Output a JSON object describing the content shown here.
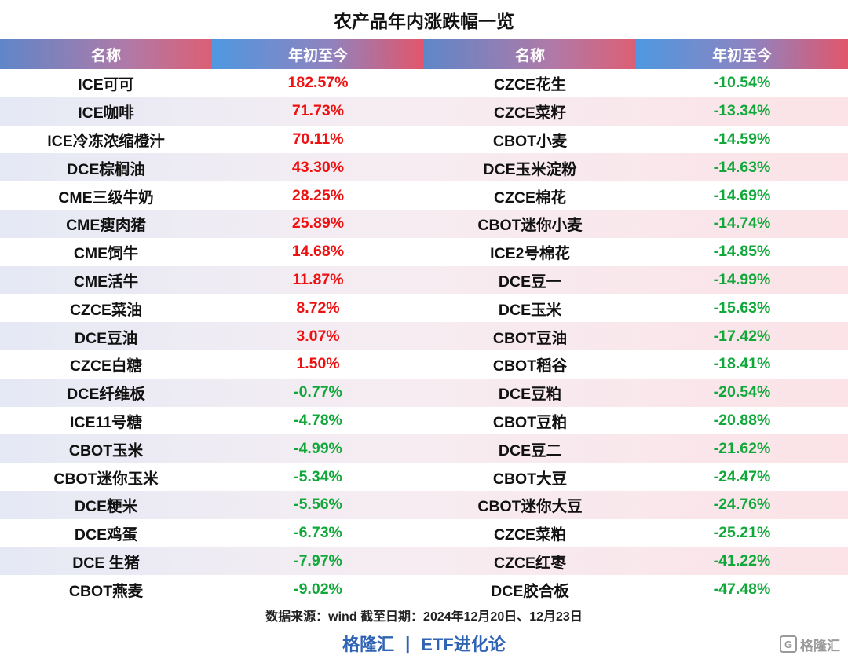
{
  "title": "农产品年内涨跌幅一览",
  "header": {
    "name_label": "名称",
    "ytd_label": "年初至今"
  },
  "colors": {
    "up": "#ee1111",
    "down": "#11a83a",
    "brand": "#2f63b3"
  },
  "chart_data": {
    "type": "table",
    "columns": [
      "名称",
      "年初至今",
      "名称",
      "年初至今"
    ],
    "left": [
      {
        "name": "ICE可可",
        "value": "182.57%",
        "direction": "up"
      },
      {
        "name": "ICE咖啡",
        "value": "71.73%",
        "direction": "up"
      },
      {
        "name": "ICE冷冻浓缩橙汁",
        "value": "70.11%",
        "direction": "up"
      },
      {
        "name": "DCE棕榈油",
        "value": "43.30%",
        "direction": "up"
      },
      {
        "name": "CME三级牛奶",
        "value": "28.25%",
        "direction": "up"
      },
      {
        "name": "CME瘦肉猪",
        "value": "25.89%",
        "direction": "up"
      },
      {
        "name": "CME饲牛",
        "value": "14.68%",
        "direction": "up"
      },
      {
        "name": "CME活牛",
        "value": "11.87%",
        "direction": "up"
      },
      {
        "name": "CZCE菜油",
        "value": "8.72%",
        "direction": "up"
      },
      {
        "name": "DCE豆油",
        "value": "3.07%",
        "direction": "up"
      },
      {
        "name": "CZCE白糖",
        "value": "1.50%",
        "direction": "up"
      },
      {
        "name": "DCE纤维板",
        "value": "-0.77%",
        "direction": "down"
      },
      {
        "name": "ICE11号糖",
        "value": "-4.78%",
        "direction": "down"
      },
      {
        "name": "CBOT玉米",
        "value": "-4.99%",
        "direction": "down"
      },
      {
        "name": "CBOT迷你玉米",
        "value": "-5.34%",
        "direction": "down"
      },
      {
        "name": "DCE粳米",
        "value": "-5.56%",
        "direction": "down"
      },
      {
        "name": "DCE鸡蛋",
        "value": "-6.73%",
        "direction": "down"
      },
      {
        "name": "DCE 生猪",
        "value": "-7.97%",
        "direction": "down"
      },
      {
        "name": "CBOT燕麦",
        "value": "-9.02%",
        "direction": "down"
      }
    ],
    "right": [
      {
        "name": "CZCE花生",
        "value": "-10.54%",
        "direction": "down"
      },
      {
        "name": "CZCE菜籽",
        "value": "-13.34%",
        "direction": "down"
      },
      {
        "name": "CBOT小麦",
        "value": "-14.59%",
        "direction": "down"
      },
      {
        "name": "DCE玉米淀粉",
        "value": "-14.63%",
        "direction": "down"
      },
      {
        "name": "CZCE棉花",
        "value": "-14.69%",
        "direction": "down"
      },
      {
        "name": "CBOT迷你小麦",
        "value": "-14.74%",
        "direction": "down"
      },
      {
        "name": "ICE2号棉花",
        "value": "-14.85%",
        "direction": "down"
      },
      {
        "name": "DCE豆一",
        "value": "-14.99%",
        "direction": "down"
      },
      {
        "name": "DCE玉米",
        "value": "-15.63%",
        "direction": "down"
      },
      {
        "name": "CBOT豆油",
        "value": "-17.42%",
        "direction": "down"
      },
      {
        "name": "CBOT稻谷",
        "value": "-18.41%",
        "direction": "down"
      },
      {
        "name": "DCE豆粕",
        "value": "-20.54%",
        "direction": "down"
      },
      {
        "name": "CBOT豆粕",
        "value": "-20.88%",
        "direction": "down"
      },
      {
        "name": "DCE豆二",
        "value": "-21.62%",
        "direction": "down"
      },
      {
        "name": "CBOT大豆",
        "value": "-24.47%",
        "direction": "down"
      },
      {
        "name": "CBOT迷你大豆",
        "value": "-24.76%",
        "direction": "down"
      },
      {
        "name": "CZCE菜粕",
        "value": "-25.21%",
        "direction": "down"
      },
      {
        "name": "CZCE红枣",
        "value": "-41.22%",
        "direction": "down"
      },
      {
        "name": "DCE胶合板",
        "value": "-47.48%",
        "direction": "down"
      }
    ]
  },
  "footer": {
    "source": "数据来源：wind  截至日期：2024年12月20日、12月23日",
    "brand_left": "格隆汇",
    "brand_sep": "|",
    "brand_right": "ETF进化论",
    "watermark_logo": "G",
    "watermark_text": "格隆汇",
    "watermark_icon": "gelonghui-logo-icon"
  }
}
